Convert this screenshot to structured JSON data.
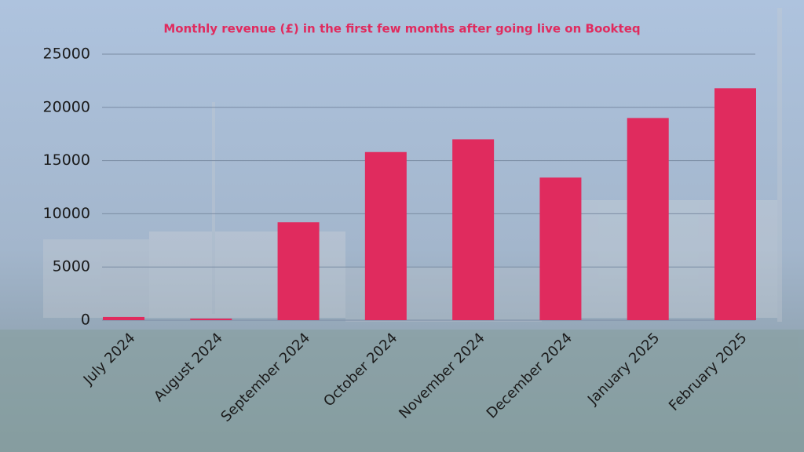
{
  "chart_data": {
    "type": "bar",
    "title": "Monthly revenue (£) in the first few months after going live on Bookteq",
    "categories": [
      "July 2024",
      "August 2024",
      "September 2024",
      "October 2024",
      "November 2024",
      "December 2024",
      "January 2025",
      "February 2025"
    ],
    "values": [
      300,
      150,
      9200,
      15800,
      17000,
      13400,
      19000,
      21800
    ],
    "color": "#e02b5e",
    "ylim": [
      0,
      25000
    ],
    "yticks": [
      0,
      5000,
      10000,
      15000,
      20000,
      25000
    ],
    "grid": true
  }
}
